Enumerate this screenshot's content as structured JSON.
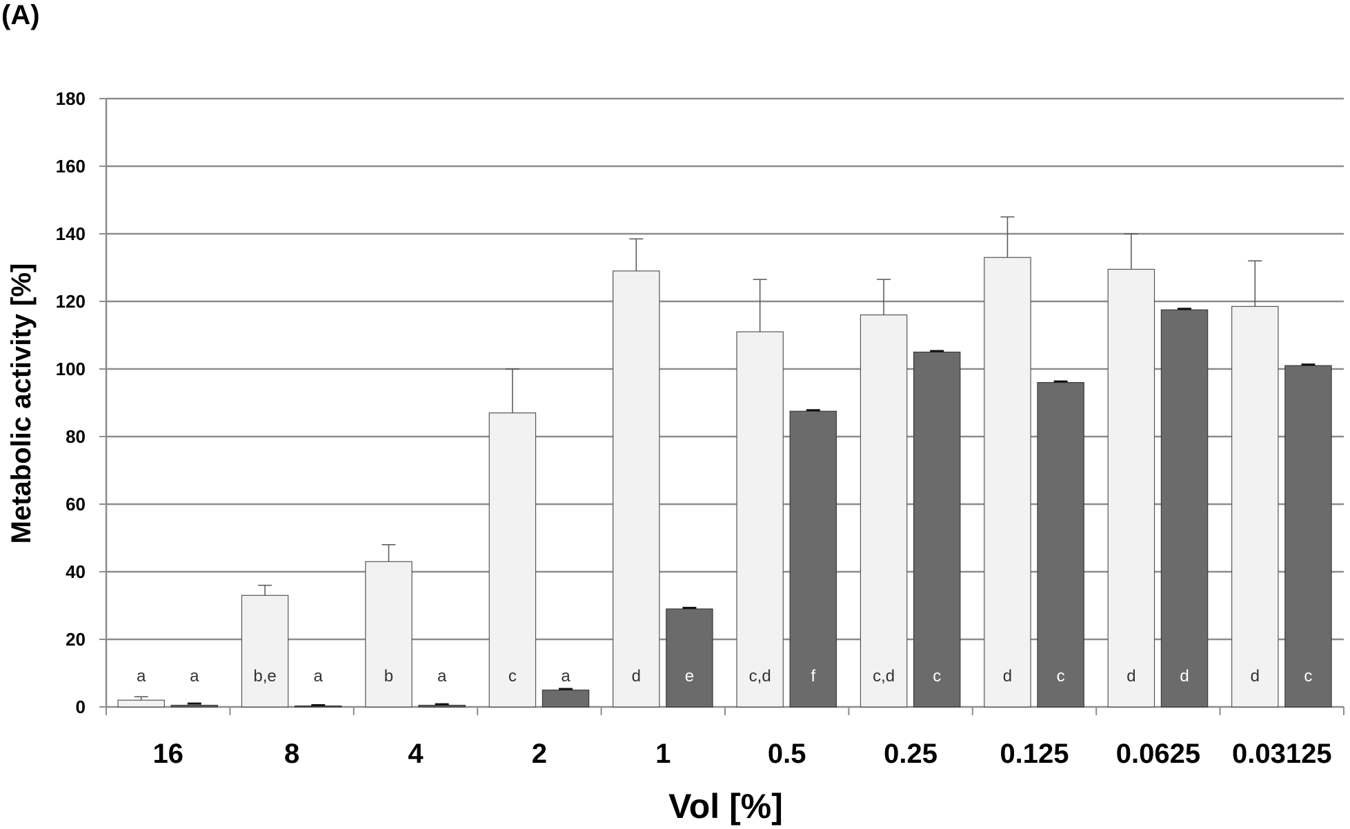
{
  "panel_label": "(A)",
  "chart_data": {
    "type": "bar",
    "title": "",
    "xlabel": "Vol [%]",
    "ylabel": "Metabolic activity [%]",
    "ylim": [
      0,
      180
    ],
    "yticks": [
      0,
      20,
      40,
      60,
      80,
      100,
      120,
      140,
      160,
      180
    ],
    "grid": true,
    "legend": "none",
    "categories": [
      "16",
      "8",
      "4",
      "2",
      "1",
      "0.5",
      "0.25",
      "0.125",
      "0.0625",
      "0.03125"
    ],
    "series": [
      {
        "color": "#f2f2f2",
        "label_color": "#333333",
        "values": [
          2,
          33,
          43,
          87,
          129,
          111,
          116,
          133,
          129.5,
          118.5
        ],
        "errors": [
          1,
          3,
          5,
          13,
          9.5,
          15.5,
          10.5,
          12,
          10.5,
          13.5
        ],
        "letters": [
          "a",
          "b,e",
          "b",
          "c",
          "d",
          "c,d",
          "c,d",
          "d",
          "d",
          "d"
        ]
      },
      {
        "color": "#6b6b6b",
        "label_color": "#ffffff",
        "values": [
          0.5,
          0.3,
          0.5,
          5,
          29,
          87.5,
          105,
          96,
          117.5,
          101
        ],
        "errors": [
          0.5,
          0.2,
          0.3,
          0.3,
          0.3,
          0.3,
          0.3,
          0.3,
          0.3,
          0.3
        ],
        "letters": [
          "a",
          "a",
          "a",
          "a",
          "e",
          "f",
          "c",
          "c",
          "d",
          "c"
        ]
      }
    ]
  }
}
